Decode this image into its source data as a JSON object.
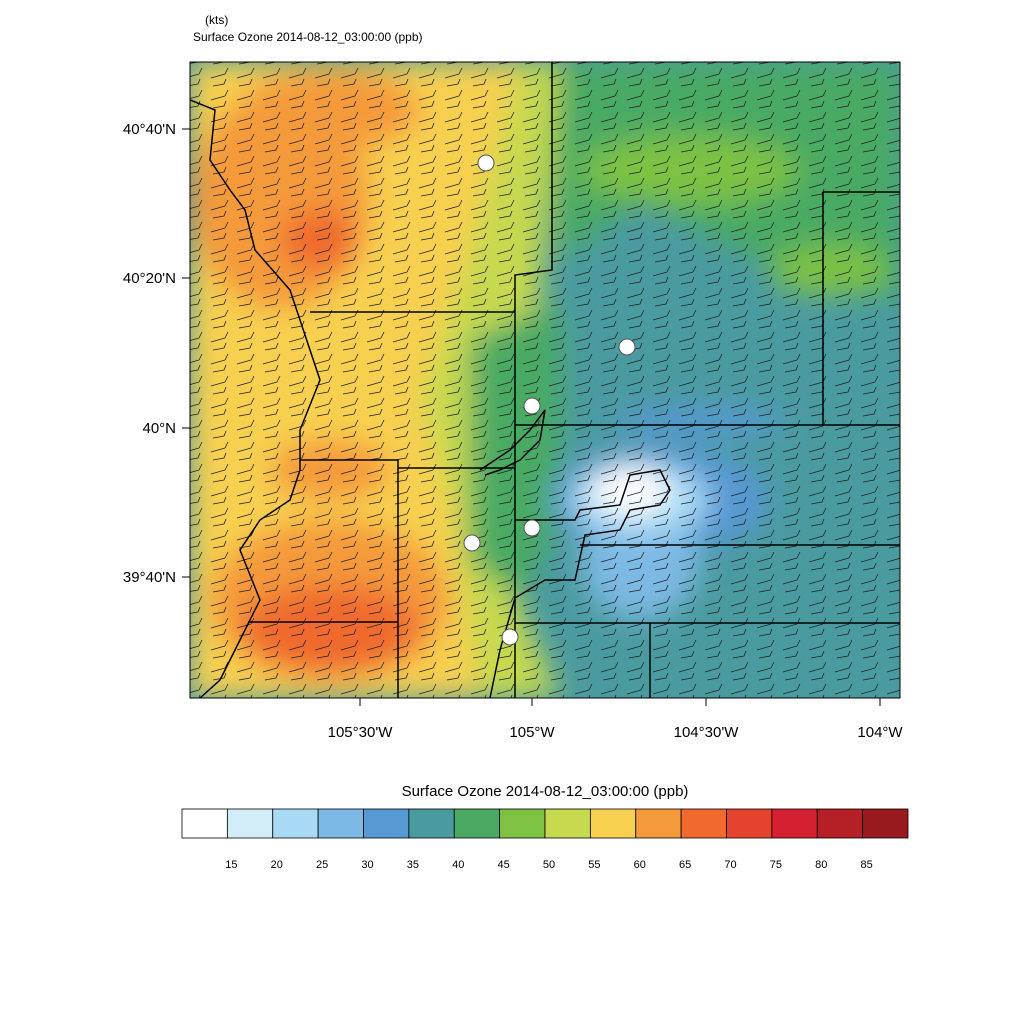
{
  "header": {
    "units": "(kts)",
    "title": "Surface Ozone   2014-08-12_03:00:00   (ppb)"
  },
  "map": {
    "lat_labels": [
      "40°40'N",
      "40°20'N",
      "40°N",
      "39°40'N"
    ],
    "lon_labels": [
      "105°30'W",
      "105°W",
      "104°30'W",
      "104°W"
    ]
  },
  "colorbar": {
    "title": "Surface Ozone   2014-08-12_03:00:00  (ppb)",
    "colors": [
      "#ffffff",
      "#d2ecf8",
      "#a9daf5",
      "#7cb9e4",
      "#5699d3",
      "#4a9ba0",
      "#4aaa64",
      "#7dc243",
      "#c6d94f",
      "#f8d050",
      "#f59a3b",
      "#f06a2e",
      "#e4432e",
      "#d42030",
      "#b51f26",
      "#981a1e"
    ],
    "labels": [
      "15",
      "20",
      "25",
      "30",
      "35",
      "40",
      "45",
      "50",
      "55",
      "60",
      "65",
      "70",
      "75",
      "80",
      "85"
    ]
  }
}
